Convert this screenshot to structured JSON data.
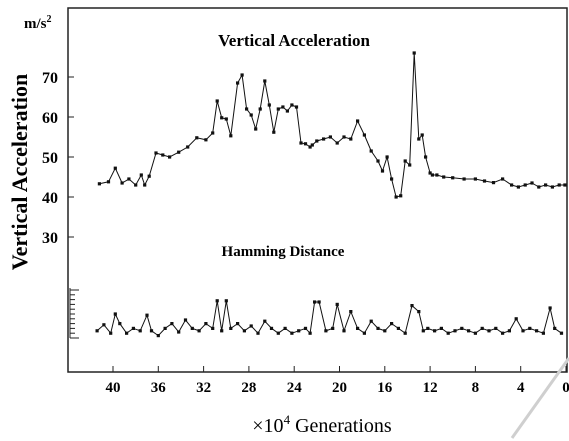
{
  "chart_data": {
    "type": "line",
    "title": "Vertical Acceleration",
    "ylabel": "Vertical Acceleration",
    "yunit": "m/s",
    "yunit_exp": "2",
    "xlabel_prefix": "×10",
    "xlabel_exp": "4",
    "xlabel_suffix": " Generations",
    "xlim": [
      42,
      0
    ],
    "ylim": [
      20,
      78
    ],
    "x_ticks": [
      "40",
      "36",
      "32",
      "28",
      "24",
      "20",
      "16",
      "12",
      "8",
      "4",
      "0"
    ],
    "y_ticks": [
      "70",
      "60",
      "50",
      "40",
      "30"
    ],
    "x_reversed": true,
    "grid": false,
    "series": [
      {
        "name": "Vertical Acceleration",
        "x": [
          41.2,
          40.4,
          39.8,
          39.2,
          38.6,
          38.0,
          37.5,
          37.2,
          36.8,
          36.2,
          35.6,
          35.0,
          34.2,
          33.4,
          32.6,
          31.8,
          31.2,
          30.8,
          30.4,
          30.0,
          29.6,
          29.0,
          28.6,
          28.2,
          27.8,
          27.4,
          27.0,
          26.6,
          26.2,
          25.8,
          25.4,
          25.0,
          24.6,
          24.2,
          23.8,
          23.4,
          23.0,
          22.6,
          22.4,
          22.0,
          21.4,
          20.8,
          20.2,
          19.6,
          19.0,
          18.4,
          17.8,
          17.2,
          16.6,
          16.2,
          15.8,
          15.4,
          15.0,
          14.6,
          14.2,
          13.8,
          13.4,
          13.0,
          12.7,
          12.4,
          12.0,
          11.8,
          11.4,
          10.8,
          10.0,
          9.0,
          8.0,
          7.2,
          6.4,
          5.6,
          4.8,
          4.2,
          3.6,
          3.0,
          2.4,
          1.8,
          1.2,
          0.6,
          0.1
        ],
        "y": [
          43.3,
          43.8,
          47.2,
          43.5,
          44.5,
          43,
          45.5,
          43,
          45.2,
          51,
          50.5,
          50,
          51.2,
          52.5,
          54.8,
          54.3,
          56,
          64,
          59.8,
          59.5,
          55.3,
          68.5,
          70.5,
          62,
          60.5,
          57,
          62,
          69,
          63,
          56.2,
          62,
          62.5,
          61.5,
          63,
          62.5,
          53.5,
          53.3,
          52.5,
          53,
          54,
          54.5,
          55,
          53.5,
          55,
          54.5,
          59,
          55.5,
          51.5,
          49,
          46.5,
          50,
          44.5,
          40,
          40.3,
          49,
          48,
          76,
          54.5,
          55.5,
          50,
          46,
          45.5,
          45.5,
          45,
          44.8,
          44.5,
          44.5,
          44,
          43.6,
          44.5,
          43,
          42.5,
          43,
          43.5,
          42.5,
          43,
          42.5,
          43,
          43
        ]
      },
      {
        "name": "Hamming Distance",
        "x": [
          41.4,
          40.8,
          40.2,
          39.8,
          39.4,
          38.8,
          38.2,
          37.6,
          37.0,
          36.6,
          36.0,
          35.4,
          34.8,
          34.2,
          33.6,
          33.0,
          32.4,
          31.8,
          31.2,
          30.8,
          30.4,
          30.0,
          29.6,
          29.0,
          28.4,
          27.8,
          27.2,
          26.6,
          26.0,
          25.4,
          24.8,
          24.2,
          23.6,
          23.0,
          22.6,
          22.2,
          21.8,
          21.2,
          20.6,
          20.2,
          19.6,
          19.0,
          18.4,
          17.8,
          17.2,
          16.6,
          16.0,
          15.4,
          14.8,
          14.2,
          13.6,
          13.0,
          12.6,
          12.2,
          11.6,
          11.0,
          10.4,
          9.8,
          9.2,
          8.6,
          8.0,
          7.4,
          6.8,
          6.2,
          5.6,
          5.0,
          4.4,
          3.8,
          3.2,
          2.6,
          2.0,
          1.4,
          1.0,
          0.4
        ],
        "y": [
          3,
          5.5,
          2,
          10,
          6,
          2,
          4,
          3,
          9.5,
          3,
          1,
          4,
          6,
          2.5,
          7.5,
          4,
          3,
          6,
          4,
          15.5,
          3,
          15.5,
          4,
          6,
          3,
          5,
          2,
          7,
          4,
          2,
          4,
          2,
          3,
          4,
          2,
          15,
          15,
          3,
          4,
          14,
          3,
          11,
          4,
          2,
          7,
          4,
          3,
          6,
          4,
          2,
          13.5,
          11,
          3,
          4,
          3,
          4,
          2,
          3,
          4,
          3,
          2,
          4,
          3,
          4,
          2,
          3,
          8,
          3,
          4,
          3,
          2,
          12.5,
          4,
          2
        ]
      }
    ],
    "hamming_title": "Hamming Distance",
    "hamming_ylim": [
      0,
      20
    ]
  }
}
